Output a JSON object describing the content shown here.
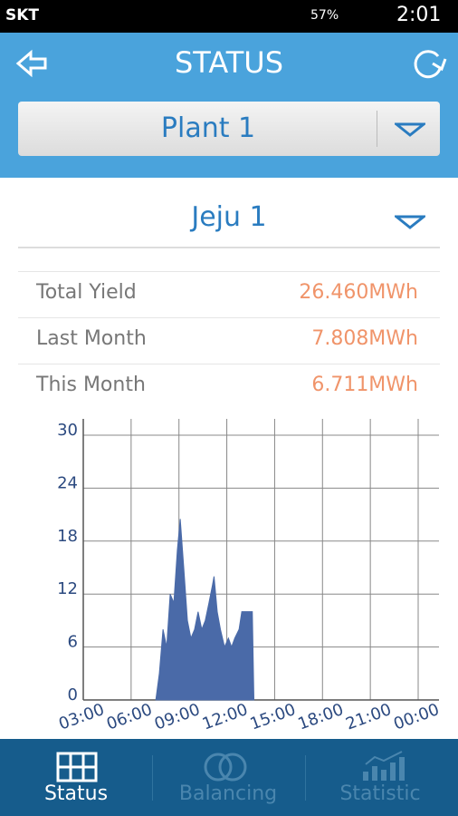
{
  "status_bar": {
    "carrier": "SKT",
    "battery": "57%",
    "time": "2:01"
  },
  "header": {
    "title": "STATUS",
    "plant": "Plant 1"
  },
  "site": "Jeju 1",
  "stats": [
    {
      "label": "Total Yield",
      "value": "26.460MWh"
    },
    {
      "label": "Last Month",
      "value": "7.808MWh"
    },
    {
      "label": "This Month",
      "value": "6.711MWh"
    }
  ],
  "chart_data": {
    "type": "area",
    "color": "#4a6aa8",
    "x": [
      7.55,
      7.77,
      8.0,
      8.23,
      8.45,
      8.68,
      8.9,
      9.08,
      9.3,
      9.53,
      9.75,
      9.98,
      10.2,
      10.43,
      10.65,
      10.88,
      11.1,
      11.2,
      11.4,
      11.6,
      11.86,
      12.1,
      12.3,
      12.5,
      12.77,
      12.94,
      13.17,
      13.4,
      13.6,
      13.7
    ],
    "values": [
      0,
      3,
      8,
      6,
      12,
      11,
      17,
      20.5,
      15,
      9,
      7,
      8,
      10,
      8,
      9,
      11,
      13,
      14,
      10,
      8,
      6,
      7,
      6,
      7,
      8,
      10,
      10,
      10,
      10,
      0
    ],
    "xlim": [
      3,
      24
    ],
    "ylim": [
      0,
      30
    ],
    "xticks": [
      {
        "value": 3,
        "label": "03:00"
      },
      {
        "value": 6,
        "label": "06:00"
      },
      {
        "value": 9,
        "label": "09:00"
      },
      {
        "value": 12,
        "label": "12:00"
      },
      {
        "value": 15,
        "label": "15:00"
      },
      {
        "value": 18,
        "label": "18:00"
      },
      {
        "value": 21,
        "label": "21:00"
      },
      {
        "value": 24,
        "label": "00:00"
      }
    ],
    "yticks": [
      0,
      6,
      12,
      18,
      24,
      30
    ],
    "grid": true
  },
  "nav": [
    "Status",
    "Balancing",
    "Statistic"
  ]
}
